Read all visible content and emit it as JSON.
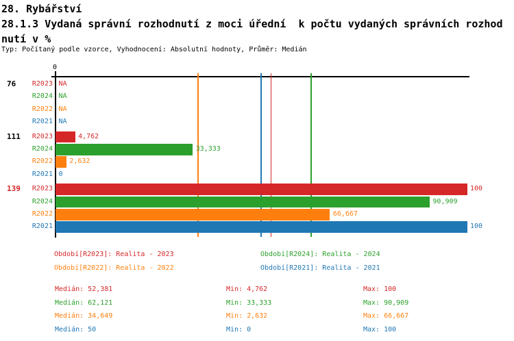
{
  "header": {
    "line1": "28. Rybářství",
    "line2": "28.1.3 Vydaná správní rozhodnutí z moci úřední  k počtu vydaných správních rozhod",
    "line3": "nutí v %",
    "meta": "Typ: Počítaný podle vzorce, Vyhodnocení: Absolutní hodnoty, Průměr: Medián"
  },
  "chart_data": {
    "type": "bar",
    "orientation": "horizontal",
    "title": "28.1.3 Vydaná správní rozhodnutí z moci úřední  k počtu vydaných správních rozhodnutí v %",
    "xlabel": "",
    "ylabel": "",
    "x_axis": {
      "min": 0,
      "max": 100,
      "tick_labels": [
        "0"
      ]
    },
    "grid": false,
    "legend_position": "bottom",
    "categories": [
      "76",
      "111",
      "139"
    ],
    "category_label_colors": [
      "#000000",
      "#000000",
      "#d62728"
    ],
    "median_lines": true,
    "series": [
      {
        "name": "R2023",
        "legend": "Období[R2023]: Realita - 2023",
        "color": "#d62728",
        "values": [
          null,
          4.762,
          100
        ],
        "labels": [
          "NA",
          "4,762",
          "100"
        ],
        "median": 52.381,
        "min": 4.762,
        "max": 100
      },
      {
        "name": "R2024",
        "legend": "Období[R2024]: Realita - 2024",
        "color": "#2ca02c",
        "values": [
          null,
          33.333,
          90.909
        ],
        "labels": [
          "NA",
          "33,333",
          "90,909"
        ],
        "median": 62.121,
        "min": 33.333,
        "max": 90.909
      },
      {
        "name": "R2022",
        "legend": "Období[R2022]: Realita - 2022",
        "color": "#ff7f0e",
        "values": [
          null,
          2.632,
          66.667
        ],
        "labels": [
          "NA",
          "2,632",
          "66,667"
        ],
        "median": 34.649,
        "min": 2.632,
        "max": 66.667
      },
      {
        "name": "R2021",
        "legend": "Období[R2021]: Realita - 2021",
        "color": "#1f77b4",
        "values": [
          null,
          0,
          100
        ],
        "labels": [
          "NA",
          "0",
          "100"
        ],
        "median": 50,
        "min": 0,
        "max": 100
      }
    ]
  },
  "stats": {
    "median_label": "Medián",
    "min_label": "Min",
    "max_label": "Max",
    "rows": [
      {
        "series": "R2023",
        "median": "52,381",
        "min": "4,762",
        "max": "100"
      },
      {
        "series": "R2024",
        "median": "62,121",
        "min": "33,333",
        "max": "90,909"
      },
      {
        "series": "R2022",
        "median": "34,649",
        "min": "2,632",
        "max": "66,667"
      },
      {
        "series": "R2021",
        "median": "50",
        "min": "0",
        "max": "100"
      }
    ]
  }
}
